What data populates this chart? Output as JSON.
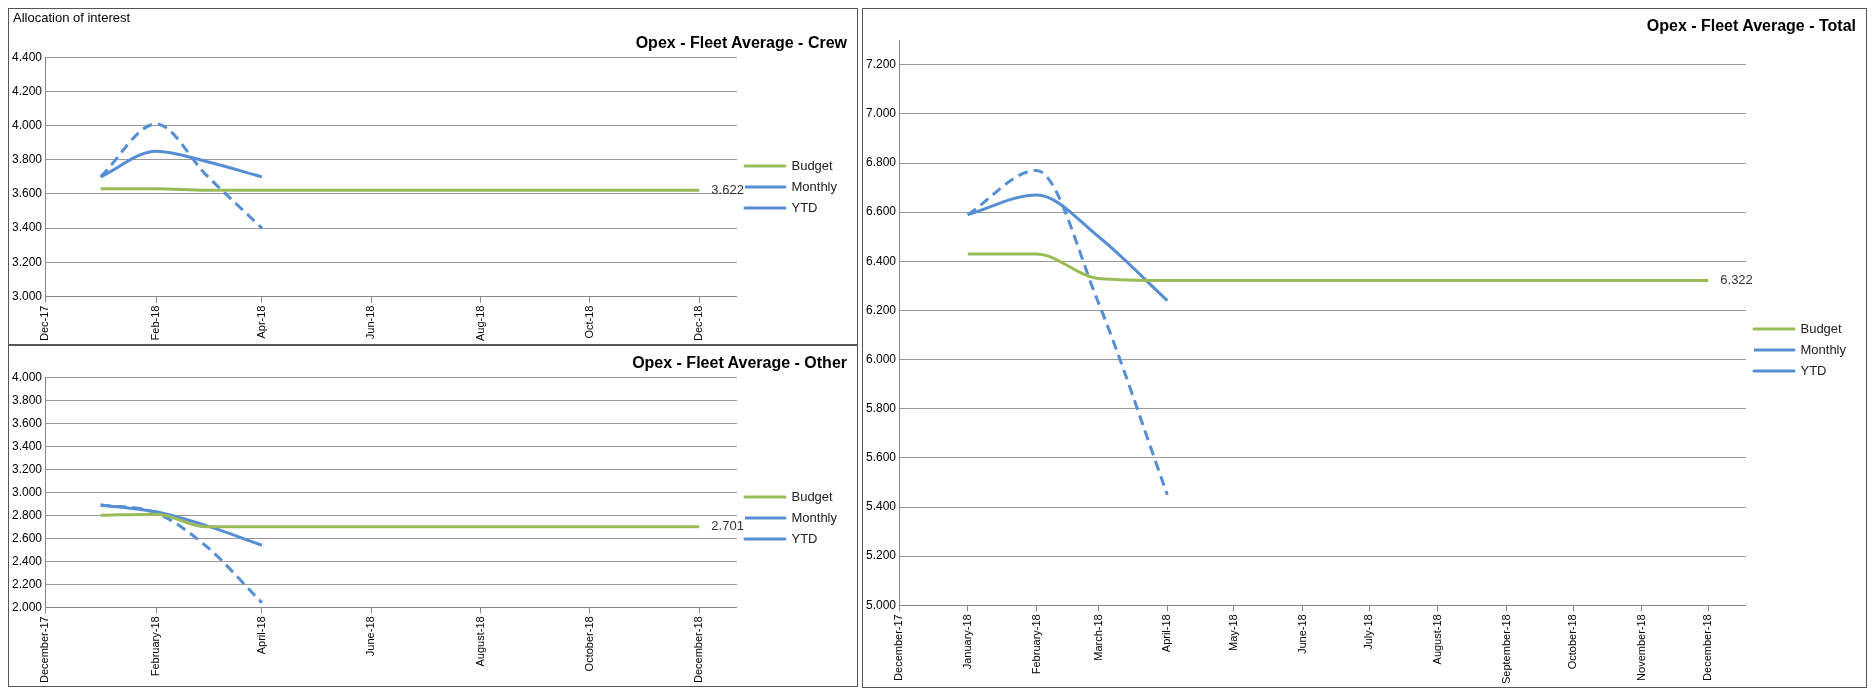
{
  "chart_data": [
    {
      "type": "line",
      "title": "Opex - Fleet Average - Crew",
      "annotations": [
        "Allocation of interest"
      ],
      "x": [
        "2018-01",
        "2018-02",
        "2018-03",
        "2018-04",
        "2018-05",
        "2018-06",
        "2018-07",
        "2018-08",
        "2018-09",
        "2018-10",
        "2018-11",
        "2018-12"
      ],
      "series": [
        {
          "name": "Budget",
          "color": "#9bbb59",
          "values": [
            3.63,
            3.63,
            3.622,
            3.622,
            3.622,
            3.622,
            3.622,
            3.622,
            3.622,
            3.622,
            3.622,
            3.622
          ],
          "value_labels": [
            null,
            null,
            null,
            null,
            null,
            null,
            null,
            null,
            null,
            null,
            null,
            "3.622"
          ]
        },
        {
          "name": "Monthly",
          "color": "#558ed5",
          "line_style": "dashed",
          "values": [
            3.7,
            4.01,
            3.71,
            3.4,
            null,
            null,
            null,
            null,
            null,
            null,
            null,
            null
          ]
        },
        {
          "name": "YTD",
          "color": "#558ed5",
          "values": [
            3.7,
            3.85,
            3.79,
            3.7,
            null,
            null,
            null,
            null,
            null,
            null,
            null,
            null
          ]
        }
      ],
      "xlim": [
        "2017-12",
        "2018-12-22"
      ],
      "xticks": [
        {
          "value": "2017-12",
          "label": "Dec-17"
        },
        {
          "value": "2018-02",
          "label": "Feb-18"
        },
        {
          "value": "2018-04",
          "label": "Apr-18"
        },
        {
          "value": "2018-06",
          "label": "Jun-18"
        },
        {
          "value": "2018-08",
          "label": "Aug-18"
        },
        {
          "value": "2018-10",
          "label": "Oct-18"
        },
        {
          "value": "2018-12",
          "label": "Dec-18"
        }
      ],
      "ylim": [
        3.0,
        4.4
      ],
      "yticks": [
        {
          "value": 3.0,
          "label": "3.000"
        },
        {
          "value": 3.2,
          "label": "3.200"
        },
        {
          "value": 3.4,
          "label": "3.400"
        },
        {
          "value": 3.6,
          "label": "3.600"
        },
        {
          "value": 3.8,
          "label": "3.800"
        },
        {
          "value": 4.0,
          "label": "4.000"
        },
        {
          "value": 4.2,
          "label": "4.200"
        },
        {
          "value": 4.4,
          "label": "4.400"
        }
      ],
      "grid": "y",
      "legend": "right",
      "marker": "none"
    },
    {
      "type": "line",
      "title": "Opex - Fleet Average - Other",
      "x": [
        "2018-01",
        "2018-02",
        "2018-03",
        "2018-04",
        "2018-05",
        "2018-06",
        "2018-07",
        "2018-08",
        "2018-09",
        "2018-10",
        "2018-11",
        "2018-12"
      ],
      "series": [
        {
          "name": "Budget",
          "color": "#9bbb59",
          "values": [
            2.8,
            2.81,
            2.7,
            2.701,
            2.701,
            2.701,
            2.701,
            2.701,
            2.701,
            2.701,
            2.701,
            2.701
          ],
          "value_labels": [
            null,
            null,
            null,
            null,
            null,
            null,
            null,
            null,
            null,
            null,
            null,
            "2.701"
          ]
        },
        {
          "name": "Monthly",
          "color": "#558ed5",
          "line_style": "dashed",
          "values": [
            2.89,
            2.82,
            2.53,
            2.04,
            null,
            null,
            null,
            null,
            null,
            null,
            null,
            null
          ]
        },
        {
          "name": "YTD",
          "color": "#558ed5",
          "values": [
            2.89,
            2.83,
            2.71,
            2.54,
            null,
            null,
            null,
            null,
            null,
            null,
            null,
            null
          ]
        }
      ],
      "xlim": [
        "2017-12",
        "2018-12-22"
      ],
      "xticks": [
        {
          "value": "2017-12",
          "label": "December-17"
        },
        {
          "value": "2018-02",
          "label": "February-18"
        },
        {
          "value": "2018-04",
          "label": "April-18"
        },
        {
          "value": "2018-06",
          "label": "June-18"
        },
        {
          "value": "2018-08",
          "label": "August-18"
        },
        {
          "value": "2018-10",
          "label": "October-18"
        },
        {
          "value": "2018-12",
          "label": "December-18"
        }
      ],
      "ylim": [
        2.0,
        4.0
      ],
      "yticks": [
        {
          "value": 2.0,
          "label": "2.000"
        },
        {
          "value": 2.2,
          "label": "2.200"
        },
        {
          "value": 2.4,
          "label": "2.400"
        },
        {
          "value": 2.6,
          "label": "2.600"
        },
        {
          "value": 2.8,
          "label": "2.800"
        },
        {
          "value": 3.0,
          "label": "3.000"
        },
        {
          "value": 3.2,
          "label": "3.200"
        },
        {
          "value": 3.4,
          "label": "3.400"
        },
        {
          "value": 3.6,
          "label": "3.600"
        },
        {
          "value": 3.8,
          "label": "3.800"
        },
        {
          "value": 4.0,
          "label": "4.000"
        }
      ],
      "grid": "y",
      "legend": "right",
      "marker": "none"
    },
    {
      "type": "line",
      "title": "Opex - Fleet Average - Total",
      "x": [
        "2018-01",
        "2018-02",
        "2018-03",
        "2018-04",
        "2018-05",
        "2018-06",
        "2018-07",
        "2018-08",
        "2018-09",
        "2018-10",
        "2018-11",
        "2018-12"
      ],
      "series": [
        {
          "name": "Budget",
          "color": "#9bbb59",
          "values": [
            6.43,
            6.43,
            6.33,
            6.322,
            6.322,
            6.322,
            6.322,
            6.322,
            6.322,
            6.322,
            6.322,
            6.322
          ],
          "value_labels": [
            null,
            null,
            null,
            null,
            null,
            null,
            null,
            null,
            null,
            null,
            null,
            "6.322"
          ]
        },
        {
          "name": "Monthly",
          "color": "#558ed5",
          "line_style": "dashed",
          "values": [
            6.59,
            6.77,
            6.23,
            5.45,
            null,
            null,
            null,
            null,
            null,
            null,
            null,
            null
          ]
        },
        {
          "name": "YTD",
          "color": "#558ed5",
          "values": [
            6.59,
            6.67,
            6.5,
            6.24,
            null,
            null,
            null,
            null,
            null,
            null,
            null,
            null
          ]
        }
      ],
      "xlim": [
        "2017-12",
        "2018-12-18"
      ],
      "xticks": [
        {
          "value": "2017-12",
          "label": "December-17"
        },
        {
          "value": "2018-01",
          "label": "January-18"
        },
        {
          "value": "2018-02",
          "label": "February-18"
        },
        {
          "value": "2018-03",
          "label": "March-18"
        },
        {
          "value": "2018-04",
          "label": "April-18"
        },
        {
          "value": "2018-05",
          "label": "May-18"
        },
        {
          "value": "2018-06",
          "label": "June-18"
        },
        {
          "value": "2018-07",
          "label": "July-18"
        },
        {
          "value": "2018-08",
          "label": "August-18"
        },
        {
          "value": "2018-09",
          "label": "September-18"
        },
        {
          "value": "2018-10",
          "label": "October-18"
        },
        {
          "value": "2018-11",
          "label": "November-18"
        },
        {
          "value": "2018-12",
          "label": "December-18"
        }
      ],
      "ylim": [
        5.0,
        7.3
      ],
      "yticks": [
        {
          "value": 5.0,
          "label": "5.000"
        },
        {
          "value": 5.2,
          "label": "5.200"
        },
        {
          "value": 5.4,
          "label": "5.400"
        },
        {
          "value": 5.6,
          "label": "5.600"
        },
        {
          "value": 5.8,
          "label": "5.800"
        },
        {
          "value": 6.0,
          "label": "6.000"
        },
        {
          "value": 6.2,
          "label": "6.200"
        },
        {
          "value": 6.4,
          "label": "6.400"
        },
        {
          "value": 6.6,
          "label": "6.600"
        },
        {
          "value": 6.8,
          "label": "6.800"
        },
        {
          "value": 7.0,
          "label": "7.000"
        },
        {
          "value": 7.2,
          "label": "7.200"
        }
      ],
      "grid": "y",
      "legend": "right",
      "marker": "none"
    }
  ]
}
